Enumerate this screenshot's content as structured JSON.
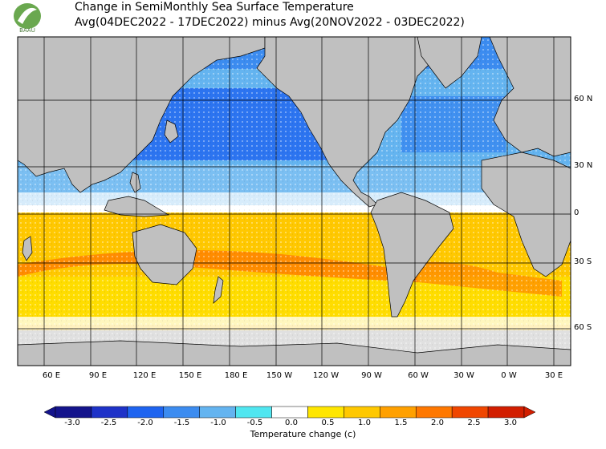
{
  "header": {
    "title_line1": "Change in SemiMonthly Sea Surface Temperature",
    "title_line2": "Avg(04DEC2022 - 17DEC2022) minus Avg(20NOV2022 - 03DEC2022)",
    "logo_text": "BAAU"
  },
  "map": {
    "lat_labels": [
      "60 N",
      "30 N",
      "0",
      "30 S",
      "60 S"
    ],
    "lon_labels": [
      "60 E",
      "90 E",
      "120 E",
      "150 E",
      "180 E",
      "150 W",
      "120 W",
      "90 W",
      "60 W",
      "30 W",
      "0 W",
      "30 E"
    ]
  },
  "colorbar": {
    "ticks": [
      "-3.0",
      "-2.5",
      "-2.0",
      "-1.5",
      "-1.0",
      "-0.5",
      "0.0",
      "0.5",
      "1.0",
      "1.5",
      "2.0",
      "2.5",
      "3.0"
    ],
    "colors": [
      "#14148c",
      "#1e32c8",
      "#1e64f0",
      "#3c8cf0",
      "#64b4f0",
      "#50e6f0",
      "#ffffff",
      "#ffe600",
      "#ffc800",
      "#ffa000",
      "#ff7800",
      "#f04600",
      "#d21e00"
    ],
    "title": "Temperature change  (c)"
  },
  "colors": {
    "land": "#c0c0c0",
    "ice": "#e0e0e0",
    "cool_strong": "#1e64f0",
    "cool_light": "#64b4f0",
    "warm": "#ffc800",
    "warm_light": "#ffe600",
    "warm_strong": "#ff7800"
  }
}
